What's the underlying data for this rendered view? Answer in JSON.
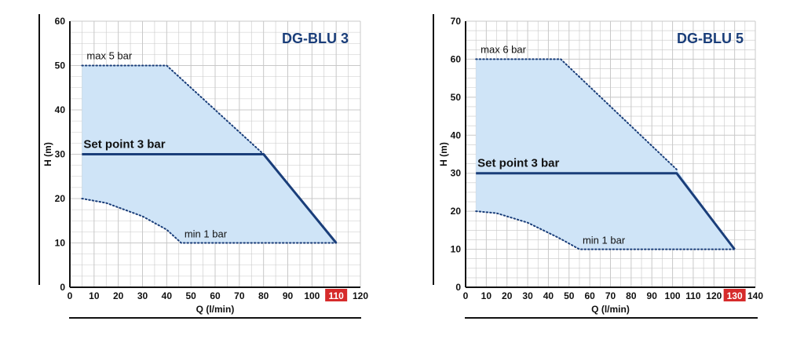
{
  "colors": {
    "curve": "#1a3e7a",
    "fill": "#cfe4f7",
    "grid": "#c8c8c8",
    "title": "#1a3e7a",
    "highlight_bg": "#d62b2b",
    "highlight_fg": "#ffffff"
  },
  "chart_data": [
    {
      "type": "area",
      "title": "DG-BLU 3",
      "xlabel": "Q (l/min)",
      "ylabel": "H (m)",
      "xlim": [
        0,
        120
      ],
      "ylim": [
        0,
        60
      ],
      "x_ticks": [
        "0",
        "10",
        "20",
        "30",
        "40",
        "50",
        "60",
        "70",
        "80",
        "90",
        "100",
        "110",
        "120"
      ],
      "y_ticks": [
        "0",
        "10",
        "20",
        "30",
        "40",
        "50",
        "60"
      ],
      "highlight_tick": "110",
      "grid": true,
      "series": [
        {
          "name": "max 5 bar",
          "style": "dotted",
          "x": [
            5,
            40,
            80
          ],
          "y": [
            50,
            50,
            30
          ]
        },
        {
          "name": "Set point 3 bar",
          "style": "solid",
          "x": [
            5,
            80,
            110
          ],
          "y": [
            30,
            30,
            10
          ]
        },
        {
          "name": "min 1 bar",
          "style": "dotted",
          "x": [
            5,
            15,
            30,
            40,
            46,
            110
          ],
          "y": [
            20,
            19,
            16,
            13,
            10,
            10
          ]
        }
      ]
    },
    {
      "type": "area",
      "title": "DG-BLU 5",
      "xlabel": "Q (l/min)",
      "ylabel": "H (m)",
      "xlim": [
        0,
        140
      ],
      "ylim": [
        0,
        70
      ],
      "x_ticks": [
        "0",
        "10",
        "20",
        "30",
        "40",
        "50",
        "60",
        "70",
        "80",
        "90",
        "100",
        "110",
        "120",
        "130",
        "140"
      ],
      "y_ticks": [
        "0",
        "10",
        "20",
        "30",
        "40",
        "50",
        "60",
        "70"
      ],
      "highlight_tick": "130",
      "grid": true,
      "series": [
        {
          "name": "max 6 bar",
          "style": "dotted",
          "x": [
            5,
            46,
            102
          ],
          "y": [
            60,
            60,
            31
          ]
        },
        {
          "name": "Set point 3 bar",
          "style": "solid",
          "x": [
            5,
            102,
            130
          ],
          "y": [
            30,
            30,
            10
          ]
        },
        {
          "name": "min 1 bar",
          "style": "dotted",
          "x": [
            5,
            15,
            30,
            45,
            55,
            130
          ],
          "y": [
            20,
            19.5,
            17,
            13,
            10,
            10
          ]
        }
      ]
    }
  ]
}
